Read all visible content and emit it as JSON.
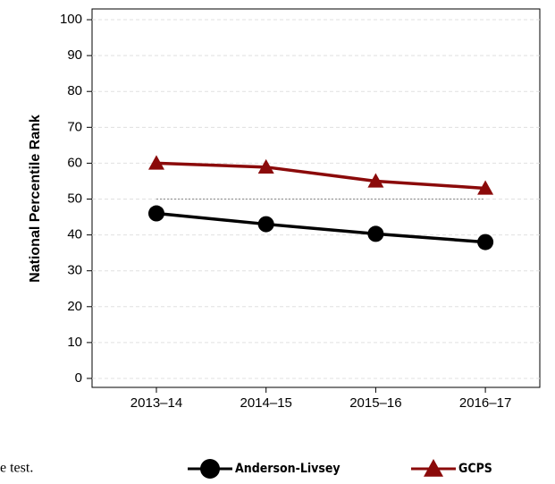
{
  "chart_data": {
    "type": "line",
    "categories": [
      "2013–14",
      "2014–15",
      "2015–16",
      "2016–17"
    ],
    "series": [
      {
        "name": "Anderson-Livsey",
        "color": "#000000",
        "marker": "circle",
        "values": [
          46,
          43,
          40.3,
          38
        ]
      },
      {
        "name": "GCPS",
        "color": "#8b0a0a",
        "marker": "triangle",
        "values": [
          60,
          58.9,
          55,
          53
        ]
      }
    ],
    "ylabel": "National Percentile Rank",
    "ylim": [
      -2.5,
      103
    ],
    "yticks": [
      0,
      10,
      20,
      30,
      40,
      50,
      60,
      70,
      80,
      90,
      100
    ],
    "reference_line": 50,
    "grid": true,
    "legend": "bottom",
    "caption": "e test."
  }
}
